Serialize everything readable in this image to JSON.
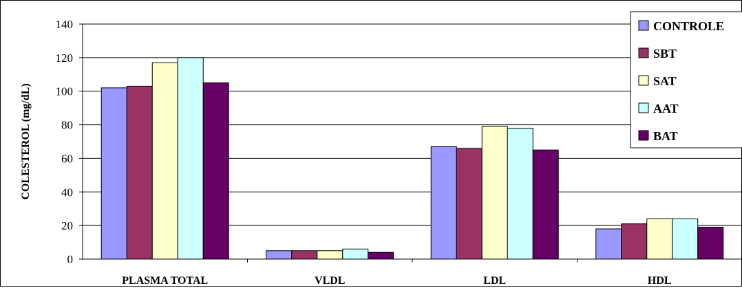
{
  "chart_data": {
    "type": "bar",
    "categories": [
      "PLASMA TOTAL",
      "VLDL",
      "LDL",
      "HDL"
    ],
    "series": [
      {
        "name": "CONTROLE",
        "color": "#9999ff",
        "values": [
          102,
          5,
          67,
          18
        ]
      },
      {
        "name": "SBT",
        "color": "#993366",
        "values": [
          103,
          5,
          66,
          21
        ]
      },
      {
        "name": "SAT",
        "color": "#ffffcc",
        "values": [
          117,
          5,
          79,
          24
        ]
      },
      {
        "name": "AAT",
        "color": "#ccffff",
        "values": [
          120,
          6,
          78,
          24
        ]
      },
      {
        "name": "BAT",
        "color": "#660066",
        "values": [
          105,
          4,
          65,
          19
        ]
      }
    ],
    "ylabel": "COLESTEROL (mg/dL)",
    "xlabel": "",
    "ylim": [
      0,
      140
    ],
    "yticks": [
      0,
      20,
      40,
      60,
      80,
      100,
      120,
      140
    ],
    "grid": true,
    "legend_position": "top-right"
  }
}
